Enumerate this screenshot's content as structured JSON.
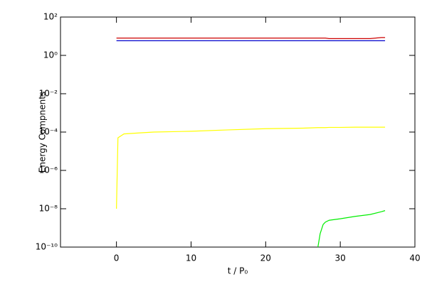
{
  "chart_data": {
    "type": "line",
    "xlabel": "t / P₀",
    "ylabel": "Energy Compnents",
    "xlim": [
      -7.5,
      40
    ],
    "xticks": [
      0,
      10,
      20,
      30,
      40
    ],
    "ylim": [
      1e-10,
      100
    ],
    "log_y": true,
    "yticks": [
      {
        "value": 100,
        "label": "10²"
      },
      {
        "value": 1,
        "label": "10⁰"
      },
      {
        "value": 0.01,
        "label": "10⁻²"
      },
      {
        "value": 0.0001,
        "label": "10⁻⁴"
      },
      {
        "value": 1e-06,
        "label": "10⁻⁶"
      },
      {
        "value": 1e-08,
        "label": "10⁻⁸"
      },
      {
        "value": 1e-10,
        "label": "10⁻¹⁰"
      }
    ],
    "grid": false,
    "x": [
      0,
      0.2,
      1,
      3,
      5,
      10,
      15,
      20,
      25,
      27,
      27.3,
      27.7,
      28,
      28.5,
      30,
      32,
      34,
      35.5,
      36
    ],
    "series": [
      {
        "color": "#cc0000",
        "values": [
          8,
          8,
          8,
          8,
          8,
          8,
          8,
          8,
          8,
          8,
          8,
          8,
          8,
          7.5,
          7.5,
          7.5,
          7.5,
          8.5,
          8.5
        ]
      },
      {
        "color": "#0000cc",
        "values": [
          5.8,
          5.8,
          5.8,
          5.8,
          5.8,
          5.8,
          5.8,
          5.8,
          5.8,
          5.8,
          5.8,
          5.8,
          5.8,
          5.8,
          5.8,
          5.8,
          5.8,
          5.8,
          5.8
        ]
      },
      {
        "color": "#ffff00",
        "values": [
          1e-08,
          5e-05,
          8e-05,
          9e-05,
          0.0001,
          0.00011,
          0.00013,
          0.00015,
          0.00016,
          0.00017,
          0.00017,
          0.00017,
          0.00017,
          0.000175,
          0.000175,
          0.00018,
          0.00018,
          0.00018,
          0.00018
        ]
      },
      {
        "color": "#00ee00",
        "values": [
          null,
          null,
          null,
          null,
          null,
          null,
          null,
          null,
          null,
          1e-10,
          5e-10,
          1.5e-09,
          2e-09,
          2.5e-09,
          3e-09,
          4e-09,
          5e-09,
          7e-09,
          8e-09
        ]
      }
    ]
  }
}
